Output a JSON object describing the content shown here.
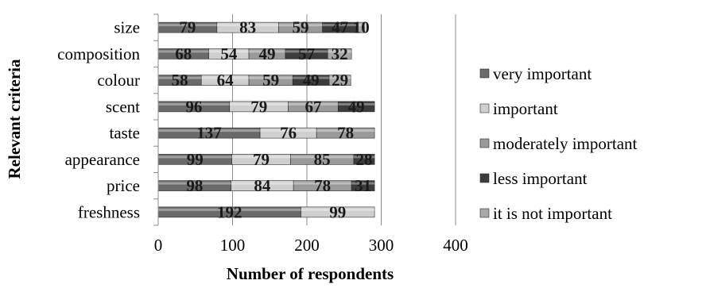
{
  "chart_data": {
    "type": "bar",
    "orientation": "horizontal",
    "stacked": true,
    "categories": [
      "size",
      "composition",
      "colour",
      "scent",
      "taste",
      "appearance",
      "price",
      "freshness"
    ],
    "series": [
      {
        "name": "very important",
        "color": "#6a6a6a",
        "values": [
          79,
          68,
          58,
          96,
          137,
          99,
          98,
          192
        ]
      },
      {
        "name": "important",
        "color": "#cfcfcf",
        "values": [
          83,
          54,
          64,
          79,
          76,
          79,
          84,
          99
        ]
      },
      {
        "name": "moderately important",
        "color": "#9a9a9a",
        "values": [
          59,
          49,
          59,
          67,
          78,
          85,
          78,
          null
        ]
      },
      {
        "name": "less important",
        "color": "#3c3c3c",
        "values": [
          47,
          57,
          49,
          49,
          null,
          28,
          31,
          null
        ]
      },
      {
        "name": "it is not important",
        "color": "#a8a8a8",
        "values": [
          10,
          32,
          29,
          null,
          null,
          null,
          null,
          null
        ]
      }
    ],
    "data_labels": [
      [
        "79",
        "83",
        "59",
        "47",
        "10"
      ],
      [
        "68",
        "54",
        "49",
        "57",
        "32"
      ],
      [
        "58",
        "64",
        "59",
        "49",
        "29"
      ],
      [
        "96",
        "79",
        "67",
        "49",
        ""
      ],
      [
        "137",
        "76",
        "78",
        "",
        ""
      ],
      [
        "99",
        "79",
        "85",
        "28",
        ""
      ],
      [
        "98",
        "84",
        "78",
        "31",
        ""
      ],
      [
        "192",
        "99",
        "",
        "",
        ""
      ]
    ],
    "xlabel": "Number of respondents",
    "ylabel": "Relevant criteria",
    "xlim": [
      0,
      400
    ],
    "xticks": [
      "0",
      "100",
      "200",
      "300",
      "400"
    ],
    "grid": "vertical",
    "legend_position": "right"
  }
}
